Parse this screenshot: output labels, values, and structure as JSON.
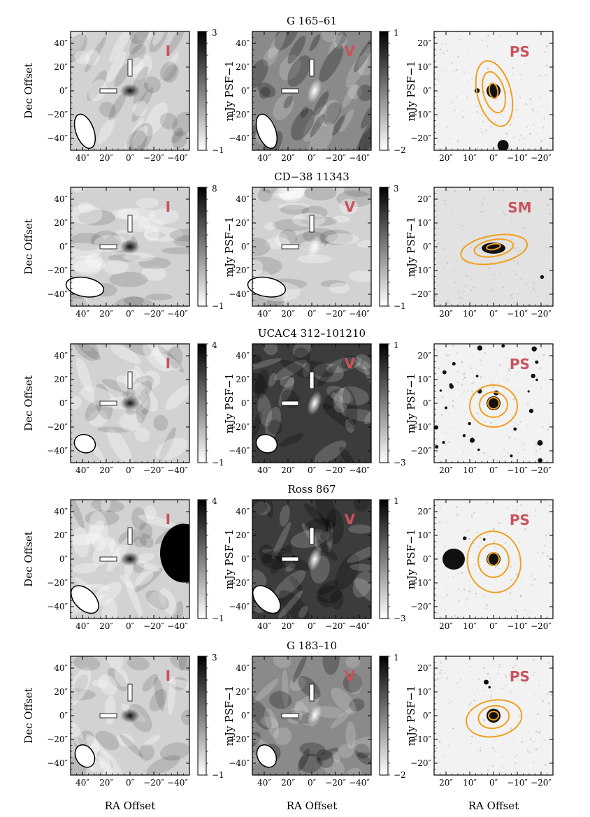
{
  "figure": {
    "axis_labels": {
      "dec": "Dec Offset",
      "ra": "RA Offset",
      "colorbar": "mJy PSF−1"
    },
    "radio_ticks": {
      "y": [
        "40″",
        "20″",
        "0″",
        "−20″",
        "−40″"
      ],
      "x": [
        "40″",
        "20″",
        "0″",
        "−20″",
        "−40″"
      ]
    },
    "optical_ticks": {
      "y": [
        "20″",
        "10″",
        "0″",
        "−10″",
        "−20″"
      ],
      "x": [
        "20″",
        "10″",
        "0″",
        "−10″",
        "−20″"
      ]
    },
    "stokes": {
      "I": "I",
      "V": "V"
    },
    "label_color": "#c9535c",
    "contour_color": "#f0a01e",
    "rows": [
      {
        "name": "G 165–61",
        "optical_label": "PS",
        "i_cbar": {
          "max": "3",
          "min": "−1"
        },
        "v_cbar": {
          "max": "1",
          "min": "−2"
        },
        "i_style": "light",
        "v_style": "grey",
        "beam_angle": -20,
        "beam_rx": 0.075,
        "beam_ry": 0.15
      },
      {
        "name": "CD−38 11343",
        "optical_label": "SM",
        "i_cbar": {
          "max": "8",
          "min": "−1"
        },
        "v_cbar": {
          "max": "3",
          "min": "−1"
        },
        "i_style": "light",
        "v_style": "light",
        "beam_angle": -80,
        "beam_rx": 0.08,
        "beam_ry": 0.16
      },
      {
        "name": "UCAC4 312–101210",
        "optical_label": "PS",
        "i_cbar": {
          "max": "4",
          "min": "−1"
        },
        "v_cbar": {
          "max": "1",
          "min": "−3"
        },
        "i_style": "light",
        "v_style": "dark",
        "beam_angle": -70,
        "beam_rx": 0.075,
        "beam_ry": 0.09
      },
      {
        "name": "Ross 867",
        "optical_label": "PS",
        "i_cbar": {
          "max": "4",
          "min": "−1"
        },
        "v_cbar": {
          "max": "1",
          "min": "−3"
        },
        "i_style": "light",
        "v_style": "dark",
        "beam_angle": -45,
        "beam_rx": 0.085,
        "beam_ry": 0.14
      },
      {
        "name": "G 183–10",
        "optical_label": "PS",
        "i_cbar": {
          "max": "3",
          "min": "−1"
        },
        "v_cbar": {
          "max": "1",
          "min": "−2"
        },
        "i_style": "light",
        "v_style": "grey",
        "beam_angle": -30,
        "beam_rx": 0.075,
        "beam_ry": 0.1
      }
    ]
  }
}
